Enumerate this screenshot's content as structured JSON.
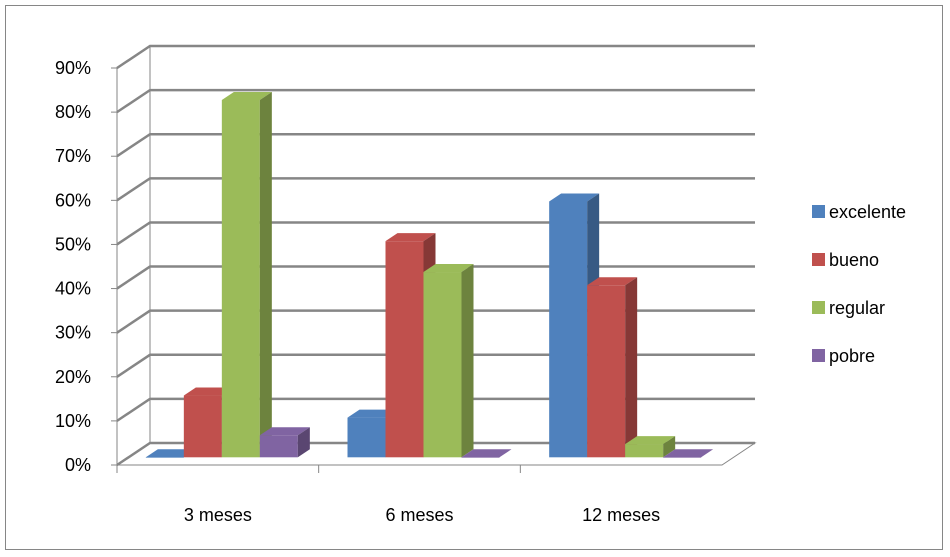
{
  "chart_data": {
    "type": "bar",
    "style": "3d-clustered-column",
    "categories": [
      "3 meses",
      "6 meses",
      "12 meses"
    ],
    "series": [
      {
        "name": "excelente",
        "color": "#4F81BD",
        "values": [
          0.0,
          0.09,
          0.58
        ]
      },
      {
        "name": "bueno",
        "color": "#C0504D",
        "values": [
          0.14,
          0.49,
          0.39
        ]
      },
      {
        "name": "regular",
        "color": "#9BBB59",
        "values": [
          0.81,
          0.42,
          0.03
        ]
      },
      {
        "name": "pobre",
        "color": "#8064A2",
        "values": [
          0.05,
          0.0,
          0.0
        ]
      }
    ],
    "y_ticks": [
      "0%",
      "10%",
      "20%",
      "30%",
      "40%",
      "50%",
      "60%",
      "70%",
      "80%",
      "90%"
    ],
    "ylim": [
      0,
      0.9
    ],
    "grid": true,
    "legend_position": "right"
  }
}
